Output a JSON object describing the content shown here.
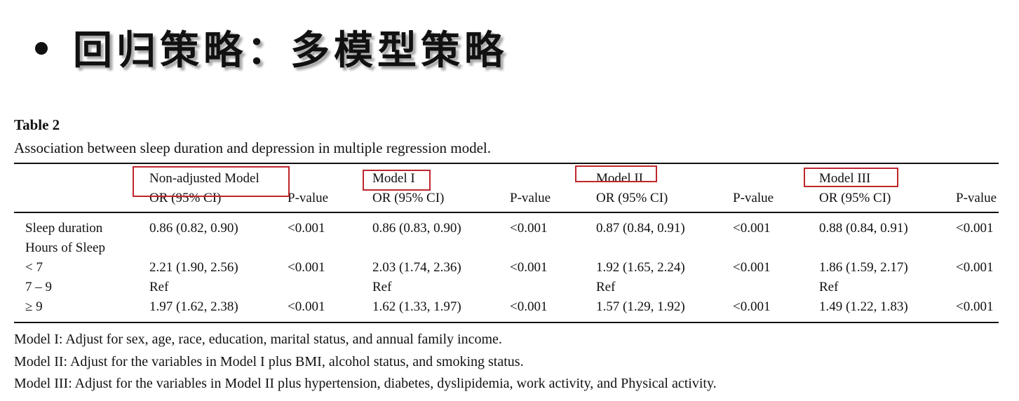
{
  "slide": {
    "title": "回归策略：多模型策略"
  },
  "table": {
    "label": "Table 2",
    "caption": "Association between sleep duration and depression in multiple regression model.",
    "model_headers": [
      "Non-adjusted Model",
      "Model I",
      "Model II",
      "Model III"
    ],
    "or_header": "OR (95% CI)",
    "p_header": "P-value",
    "rows": [
      {
        "label": "Sleep duration",
        "cells": [
          "0.86 (0.82, 0.90)",
          "<0.001",
          "0.86 (0.83, 0.90)",
          "<0.001",
          "0.87 (0.84, 0.91)",
          "<0.001",
          "0.88 (0.84, 0.91)",
          "<0.001"
        ]
      },
      {
        "label": "Hours of Sleep",
        "cells": [
          "",
          "",
          "",
          "",
          "",
          "",
          "",
          ""
        ]
      },
      {
        "label": "< 7",
        "cells": [
          "2.21 (1.90, 2.56)",
          "<0.001",
          "2.03 (1.74, 2.36)",
          "<0.001",
          "1.92 (1.65, 2.24)",
          "<0.001",
          "1.86 (1.59, 2.17)",
          "<0.001"
        ]
      },
      {
        "label": "7 – 9",
        "cells": [
          "Ref",
          "",
          "Ref",
          "",
          "Ref",
          "",
          "Ref",
          ""
        ]
      },
      {
        "label": "≥ 9",
        "cells": [
          "1.97 (1.62, 2.38)",
          "<0.001",
          "1.62 (1.33, 1.97)",
          "<0.001",
          "1.57 (1.29, 1.92)",
          "<0.001",
          "1.49 (1.22, 1.83)",
          "<0.001"
        ]
      }
    ],
    "highlight_color": "#c0262d"
  },
  "notes": [
    "Model I: Adjust for sex, age, race, education, marital status, and annual family income.",
    "Model II: Adjust for the variables in Model I plus BMI, alcohol status, and smoking status.",
    "Model III: Adjust for the variables in Model II plus hypertension, diabetes, dyslipidemia, work activity, and Physical activity."
  ]
}
